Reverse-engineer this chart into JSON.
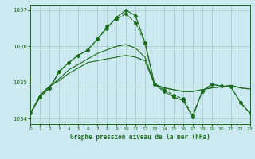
{
  "title": "Graphe pression niveau de la mer (hPa)",
  "background_color": "#cce8f0",
  "grid_color": "#99ccbb",
  "line_color": "#1a6b1a",
  "xlim": [
    0,
    23
  ],
  "ylim": [
    1033.85,
    1037.15
  ],
  "yticks": [
    1034,
    1035,
    1036,
    1037
  ],
  "xticks": [
    0,
    1,
    2,
    3,
    4,
    5,
    6,
    7,
    8,
    9,
    10,
    11,
    12,
    13,
    14,
    15,
    16,
    17,
    18,
    19,
    20,
    21,
    22,
    23
  ],
  "series": {
    "s1": [
      1034.15,
      1034.65,
      1034.9,
      1035.05,
      1035.25,
      1035.4,
      1035.55,
      1035.6,
      1035.65,
      1035.7,
      1035.75,
      1035.7,
      1035.6,
      1034.95,
      1034.85,
      1034.8,
      1034.75,
      1034.75,
      1034.8,
      1034.85,
      1034.88,
      1034.92,
      1034.85,
      1034.82
    ],
    "s2": [
      1034.15,
      1034.65,
      1034.9,
      1035.1,
      1035.35,
      1035.5,
      1035.65,
      1035.8,
      1035.9,
      1036.0,
      1036.05,
      1035.95,
      1035.7,
      1034.95,
      1034.85,
      1034.8,
      1034.75,
      1034.75,
      1034.8,
      1034.85,
      1034.88,
      1034.92,
      1034.85,
      1034.82
    ],
    "s3": [
      1034.15,
      1034.6,
      1034.85,
      1035.3,
      1035.55,
      1035.75,
      1035.9,
      1036.2,
      1036.55,
      1036.75,
      1036.9,
      1036.65,
      1036.1,
      1034.95,
      1034.8,
      1034.65,
      1034.55,
      1034.1,
      1034.75,
      1034.95,
      1034.9,
      1034.88,
      1034.45,
      1034.15
    ],
    "s4": [
      1034.15,
      1034.6,
      1034.85,
      1035.3,
      1035.55,
      1035.75,
      1035.9,
      1036.2,
      1036.5,
      1036.8,
      1037.0,
      1036.85,
      1036.1,
      1034.95,
      1034.75,
      1034.6,
      1034.5,
      1034.05,
      1034.75,
      1034.95,
      1034.9,
      1034.88,
      1034.45,
      1034.15
    ]
  },
  "figsize": [
    3.2,
    2.0
  ],
  "dpi": 100
}
